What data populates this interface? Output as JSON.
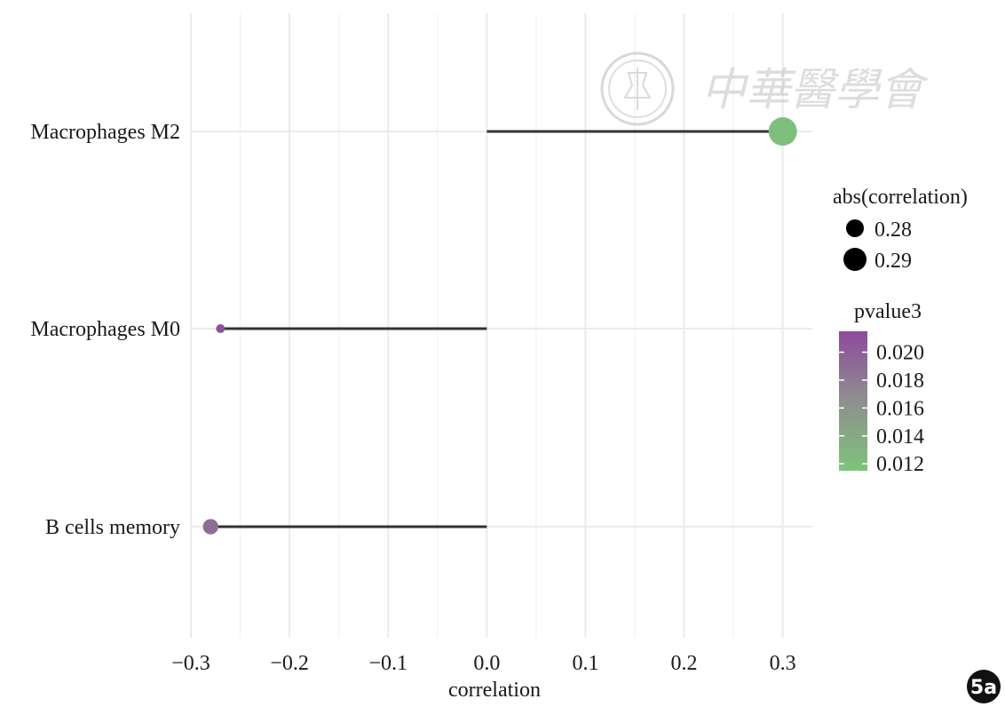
{
  "chart_data": {
    "type": "scatter",
    "style": "lollipop",
    "categories": [
      "Macrophages M2",
      "Macrophages M0",
      "B cells memory"
    ],
    "x": [
      0.3,
      -0.27,
      -0.28
    ],
    "abs_correlation": [
      0.3,
      0.27,
      0.28
    ],
    "pvalue3": [
      0.012,
      0.021,
      0.019
    ],
    "xlabel": "correlation",
    "ylabel": "",
    "xlim": [
      -0.3,
      0.33
    ],
    "x_ticks": [
      -0.3,
      -0.2,
      -0.1,
      0.0,
      0.1,
      0.2,
      0.3
    ],
    "x_tick_labels": [
      "−0.3",
      "−0.2",
      "−0.1",
      "0.0",
      "0.1",
      "0.2",
      "0.3"
    ],
    "grid": true,
    "legend_size": {
      "title": "abs(correlation)",
      "values": [
        0.28,
        0.29
      ],
      "labels": [
        "0.28",
        "0.29"
      ]
    },
    "legend_color": {
      "title": "pvalue3",
      "range": [
        0.0115,
        0.0215
      ],
      "ticks": [
        0.02,
        0.018,
        0.016,
        0.014,
        0.012
      ],
      "tick_labels": [
        "0.020",
        "0.018",
        "0.016",
        "0.014",
        "0.012"
      ],
      "low_color": "#7dc47a",
      "mid_color": "#8f8f8f",
      "high_color": "#8e4a9c"
    },
    "legend_position": "right"
  },
  "colors": {
    "segment": "#333333",
    "grid": "#ebebeb"
  },
  "badge": {
    "label": "5a"
  },
  "watermark": {
    "icon": "society-seal-icon",
    "text": "中華醫學會"
  }
}
